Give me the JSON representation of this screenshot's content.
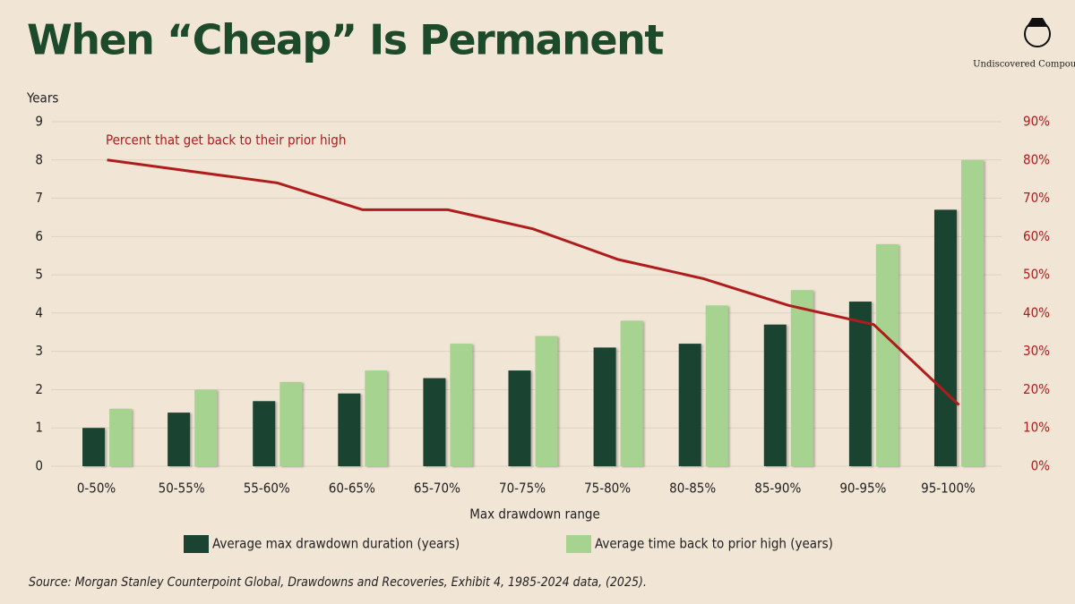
{
  "chart_data": {
    "type": "bar",
    "title": "When “Cheap” Is Permanent",
    "brand": "Undiscovered Compounders",
    "x_label": "Max drawdown range",
    "y_label": "Years",
    "annotation": "Percent that get back to their prior high",
    "source": "Source: Morgan Stanley Counterpoint Global, Drawdowns and Recoveries, Exhibit 4, 1985-2024 data, (2025).",
    "categories": [
      "0-50%",
      "50-55%",
      "55-60%",
      "60-65%",
      "65-70%",
      "70-75%",
      "75-80%",
      "80-85%",
      "85-90%",
      "90-95%",
      "95-100%"
    ],
    "series": [
      {
        "name": "Average max drawdown duration (years)",
        "color": "#1b4332",
        "values": [
          1.0,
          1.4,
          1.7,
          1.9,
          2.3,
          2.5,
          3.1,
          3.2,
          3.7,
          4.3,
          6.7
        ]
      },
      {
        "name": "Average time back to prior high (years)",
        "color": "#a6d38f",
        "values": [
          1.5,
          2.0,
          2.2,
          2.5,
          3.2,
          3.4,
          3.8,
          4.2,
          4.6,
          5.8,
          8.0
        ]
      },
      {
        "type": "line",
        "axis": "y2",
        "color": "#b01c1c",
        "values": [
          80,
          77,
          74,
          67,
          67,
          62,
          54,
          49,
          42,
          37,
          16
        ]
      }
    ],
    "ylim": [
      0,
      9
    ],
    "yticks": [
      0,
      1,
      2,
      3,
      4,
      5,
      6,
      7,
      8,
      9
    ],
    "y2lim": [
      0,
      90
    ],
    "y2ticks": [
      {
        "value": 0,
        "label": "0%"
      },
      {
        "value": 10,
        "label": "10%"
      },
      {
        "value": 20,
        "label": "20%"
      },
      {
        "value": 30,
        "label": "30%"
      },
      {
        "value": 40,
        "label": "40%"
      },
      {
        "value": 50,
        "label": "50%"
      },
      {
        "value": 60,
        "label": "60%"
      },
      {
        "value": 70,
        "label": "70%"
      },
      {
        "value": 80,
        "label": "80%"
      },
      {
        "value": 90,
        "label": "90%"
      }
    ],
    "grid": true
  }
}
